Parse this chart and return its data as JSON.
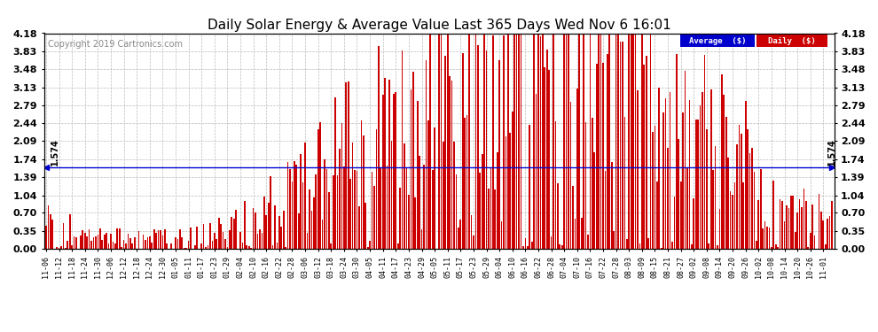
{
  "title": "Daily Solar Energy & Average Value Last 365 Days Wed Nov 6 16:01",
  "copyright": "Copyright 2019 Cartronics.com",
  "average_value": 1.574,
  "average_label": "Average  ($)",
  "daily_label": "Daily  ($)",
  "bar_color": "#cc0000",
  "average_line_color": "#0000cc",
  "background_color": "#ffffff",
  "plot_bg_color": "#ffffff",
  "grid_color": "#bbbbbb",
  "yticks": [
    0.0,
    0.35,
    0.7,
    1.04,
    1.39,
    1.74,
    2.09,
    2.44,
    2.79,
    3.13,
    3.48,
    3.83,
    4.18
  ],
  "ylim": [
    0,
    4.18
  ],
  "x_labels": [
    "11-06",
    "11-12",
    "11-18",
    "11-24",
    "11-30",
    "12-06",
    "12-12",
    "12-18",
    "12-24",
    "12-30",
    "01-05",
    "01-11",
    "01-17",
    "01-23",
    "01-29",
    "02-04",
    "02-10",
    "02-16",
    "02-22",
    "02-28",
    "03-06",
    "03-12",
    "03-18",
    "03-24",
    "03-30",
    "04-05",
    "04-11",
    "04-17",
    "04-23",
    "04-29",
    "05-05",
    "05-11",
    "05-17",
    "05-23",
    "05-29",
    "06-04",
    "06-10",
    "06-16",
    "06-22",
    "06-28",
    "07-04",
    "07-10",
    "07-16",
    "07-22",
    "07-28",
    "08-03",
    "08-09",
    "08-15",
    "08-21",
    "08-27",
    "09-02",
    "09-08",
    "09-14",
    "09-20",
    "09-26",
    "10-02",
    "10-08",
    "10-14",
    "10-20",
    "10-26",
    "11-01"
  ],
  "num_bars": 365,
  "legend_avg_color": "#0000cc",
  "legend_daily_color": "#cc0000",
  "legend_text_color": "#ffffff",
  "avg_line_label": "1.574",
  "title_fontsize": 11,
  "copyright_fontsize": 7,
  "ytick_fontsize": 8,
  "xtick_fontsize": 6,
  "bar_width": 0.7
}
